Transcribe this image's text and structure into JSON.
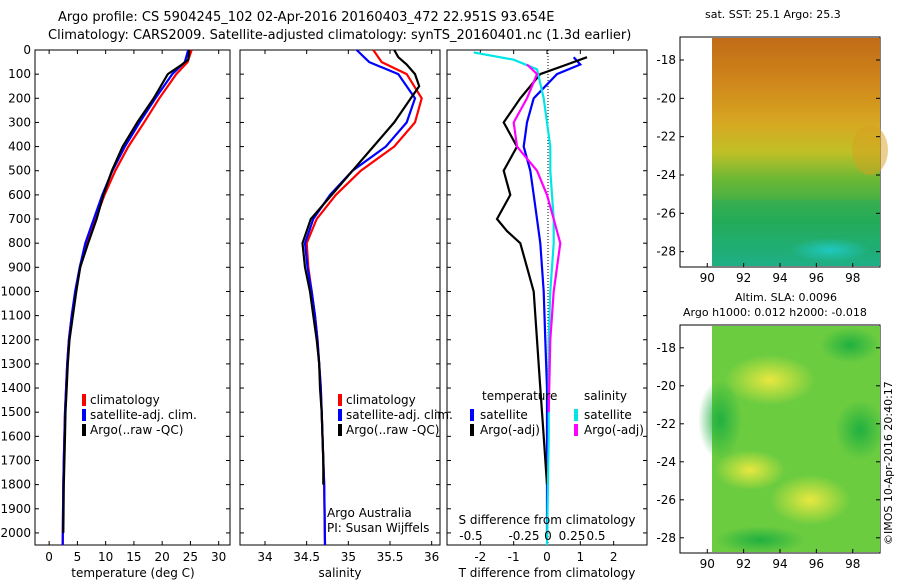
{
  "header": {
    "line1": "Argo profile: CS 5904245_102 02-Apr-2016 20160403_472 22.951S 93.654E",
    "line2": "Climatology: CARS2009. Satellite-adjusted climatology: synTS_20160401.nc (1.3d earlier)"
  },
  "credit": "©IMOS 10-Apr-2016 20:40:17",
  "colors": {
    "climatology": "#ff0000",
    "satellite": "#0000ff",
    "argo": "#000000",
    "sal_satellite": "#00e5e5",
    "sal_argo": "#ff00ff"
  },
  "chart_data": [
    {
      "type": "line",
      "xlabel": "temperature (deg C)",
      "xlim": [
        -2.5,
        32
      ],
      "xticks": [
        0,
        5,
        10,
        15,
        20,
        25,
        30
      ],
      "ylim": [
        2050,
        0
      ],
      "yticks": [
        0,
        100,
        200,
        300,
        400,
        500,
        600,
        700,
        800,
        900,
        1000,
        1100,
        1200,
        1300,
        1400,
        1500,
        1600,
        1700,
        1800,
        1900,
        2000
      ],
      "legend_position": "lower-left",
      "series": [
        {
          "name": "climatology",
          "color": "#ff0000",
          "x": [
            25.2,
            24.5,
            22.5,
            19.5,
            16.8,
            14.0,
            11.7,
            9.8,
            8.2,
            6.6,
            5.5,
            4.7,
            4.0,
            3.5,
            3.2,
            3.0,
            2.8,
            2.7,
            2.6,
            2.5,
            2.4
          ],
          "y": [
            0,
            50,
            100,
            200,
            300,
            400,
            500,
            600,
            700,
            800,
            900,
            1000,
            1100,
            1200,
            1300,
            1400,
            1500,
            1600,
            1700,
            1800,
            2050
          ]
        },
        {
          "name": "satellite-adj. clim.",
          "color": "#0000ff",
          "x": [
            24.6,
            24.0,
            21.8,
            18.8,
            16.0,
            13.4,
            11.2,
            9.4,
            7.9,
            6.4,
            5.4,
            4.6,
            4.0,
            3.5,
            3.2,
            3.0,
            2.8,
            2.7,
            2.6,
            2.5,
            2.4
          ],
          "y": [
            0,
            50,
            100,
            200,
            300,
            400,
            500,
            600,
            700,
            800,
            900,
            1000,
            1100,
            1200,
            1300,
            1400,
            1500,
            1600,
            1700,
            1800,
            2050
          ]
        },
        {
          "name": "Argo(..raw -QC)",
          "color": "#000000",
          "x": [
            24.8,
            24.6,
            23.5,
            21.0,
            18.5,
            15.6,
            13.0,
            11.1,
            9.6,
            8.4,
            6.9,
            5.5,
            4.8,
            4.2,
            3.6,
            3.3,
            3.1,
            2.9,
            2.8,
            2.7,
            2.6,
            2.5
          ],
          "y": [
            0,
            40,
            60,
            100,
            200,
            300,
            400,
            500,
            600,
            700,
            800,
            900,
            1000,
            1100,
            1200,
            1300,
            1400,
            1500,
            1600,
            1700,
            1800,
            2000
          ]
        }
      ],
      "legend": [
        "climatology",
        "satellite-adj. clim.",
        "Argo(..raw -QC)"
      ]
    },
    {
      "type": "line",
      "xlabel": "salinity",
      "xlim": [
        33.7,
        36.1
      ],
      "xticks": [
        34,
        34.5,
        35,
        35.5,
        36
      ],
      "ylim": [
        2050,
        0
      ],
      "legend_position": "lower-left",
      "series": [
        {
          "name": "climatology",
          "color": "#ff0000",
          "x": [
            35.3,
            35.4,
            35.7,
            35.88,
            35.8,
            35.55,
            35.15,
            34.85,
            34.62,
            34.5,
            34.52,
            34.56,
            34.6,
            34.63,
            34.65,
            34.67,
            34.68,
            34.69,
            34.7,
            34.71,
            34.72
          ],
          "y": [
            0,
            50,
            100,
            200,
            300,
            400,
            500,
            600,
            700,
            800,
            900,
            1000,
            1100,
            1200,
            1300,
            1400,
            1500,
            1600,
            1700,
            1800,
            2050
          ]
        },
        {
          "name": "satellite-adj. clim.",
          "color": "#0000ff",
          "x": [
            35.1,
            35.25,
            35.6,
            35.8,
            35.7,
            35.45,
            35.05,
            34.78,
            34.58,
            34.48,
            34.51,
            34.56,
            34.6,
            34.63,
            34.65,
            34.67,
            34.68,
            34.69,
            34.7,
            34.71,
            34.72
          ],
          "y": [
            0,
            50,
            100,
            200,
            300,
            400,
            500,
            600,
            700,
            800,
            900,
            1000,
            1100,
            1200,
            1300,
            1400,
            1500,
            1600,
            1700,
            1800,
            2050
          ]
        },
        {
          "name": "Argo(..raw -QC)",
          "color": "#000000",
          "x": [
            35.55,
            35.6,
            35.7,
            35.8,
            35.85,
            35.75,
            35.55,
            35.3,
            35.05,
            34.8,
            34.55,
            34.45,
            34.48,
            34.54,
            34.58,
            34.62,
            34.65,
            34.66,
            34.68,
            34.69,
            34.7,
            34.7
          ],
          "y": [
            0,
            30,
            60,
            100,
            150,
            200,
            300,
            400,
            500,
            600,
            700,
            800,
            900,
            1000,
            1100,
            1200,
            1300,
            1400,
            1500,
            1600,
            1700,
            1800
          ]
        }
      ],
      "legend": [
        "climatology",
        "satellite-adj. clim.",
        "Argo(..raw -QC)"
      ],
      "annotation": [
        "Argo Australia",
        "PI: Susan Wijffels"
      ]
    },
    {
      "type": "line",
      "xlabel": "T difference from climatology",
      "xlim": [
        -3,
        3
      ],
      "xticks": [
        -2,
        -1,
        0,
        1,
        2
      ],
      "secondary_axis_label": "S difference from climatology",
      "secondary_ticks": [
        "-0.5",
        "-0.25",
        "0",
        "0.25",
        "0.5"
      ],
      "ylim": [
        2050,
        0
      ],
      "legend_position": "lower-center",
      "legend_groups": [
        {
          "title": "temperature",
          "items": [
            "satellite",
            "Argo(-adj)"
          ]
        },
        {
          "title": "salinity",
          "items": [
            "satellite",
            "Argo(-adj)"
          ]
        }
      ],
      "series": [
        {
          "name": "temperature satellite",
          "color": "#0000ff",
          "x": [
            0.8,
            1.0,
            0.3,
            -0.4,
            -0.6,
            -0.7,
            -0.5,
            -0.4,
            -0.3,
            -0.2,
            -0.15,
            -0.1,
            -0.05,
            0,
            0,
            0
          ],
          "y": [
            30,
            60,
            100,
            200,
            300,
            400,
            500,
            600,
            700,
            800,
            900,
            1000,
            1200,
            1400,
            1700,
            2000
          ]
        },
        {
          "name": "temperature Argo(-adj)",
          "color": "#000000",
          "x": [
            1.2,
            0.6,
            -0.2,
            -0.8,
            -1.3,
            -0.9,
            -1.3,
            -1.1,
            -1.5,
            -1.2,
            -0.8,
            -0.6,
            -0.4,
            -0.3,
            -0.2,
            -0.1,
            0
          ],
          "y": [
            30,
            60,
            100,
            200,
            300,
            400,
            500,
            600,
            700,
            750,
            800,
            900,
            1000,
            1200,
            1400,
            1600,
            1800
          ]
        },
        {
          "name": "salinity satellite",
          "color": "#00e5e5",
          "x": [
            -2.2,
            -1.0,
            -0.3,
            -0.1,
            0.0,
            0.1,
            0.1,
            0.15,
            0.2,
            0.2,
            0.15,
            0.1,
            0.05,
            0.05,
            0.0
          ],
          "y": [
            10,
            40,
            80,
            200,
            300,
            400,
            500,
            600,
            700,
            800,
            900,
            1000,
            1200,
            1600,
            2050
          ]
        },
        {
          "name": "salinity Argo(-adj)",
          "color": "#ff00ff",
          "x": [
            -0.6,
            -0.3,
            -0.6,
            -1.0,
            -0.9,
            -0.3,
            0.0,
            0.2,
            0.4,
            0.3,
            0.2,
            0.1,
            0.05
          ],
          "y": [
            60,
            100,
            200,
            300,
            400,
            500,
            600,
            700,
            800,
            900,
            1000,
            1200,
            1500
          ]
        }
      ]
    },
    {
      "type": "heatmap",
      "title": "sat. SST: 25.1  Argo: 25.3",
      "xlim": [
        88.5,
        99.5
      ],
      "xticks": [
        90,
        92,
        94,
        96,
        98
      ],
      "ylim": [
        -28.8,
        -16.8
      ],
      "yticks": [
        -18,
        -20,
        -22,
        -24,
        -26,
        -28
      ],
      "colormap": [
        "#d07a18",
        "#e8a020",
        "#d8c020",
        "#a8cc30",
        "#50c040",
        "#20b060",
        "#20c0c0"
      ]
    },
    {
      "type": "heatmap",
      "title": "Altim. SLA: 0.0096",
      "subtitle": "Argo h1000: 0.012 h2000: -0.018",
      "xlim": [
        88.5,
        99.5
      ],
      "xticks": [
        90,
        92,
        94,
        96,
        98
      ],
      "ylim": [
        -28.8,
        -16.8
      ],
      "yticks": [
        -18,
        -20,
        -22,
        -24,
        -26,
        -28
      ],
      "colormap": [
        "#20b050",
        "#60c840",
        "#a8dc40",
        "#e0e840"
      ]
    }
  ]
}
